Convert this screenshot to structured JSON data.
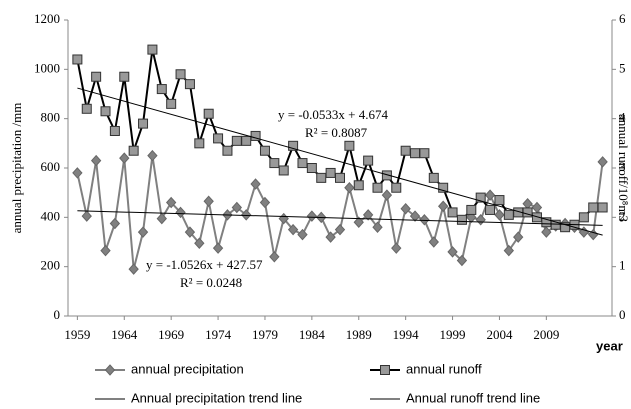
{
  "chart_data": {
    "type": "line",
    "y_label": "annual precipitation /mm",
    "y2_label": "annual runoff/10⁸m3",
    "x_label": "year",
    "xlim": [
      1958,
      2016
    ],
    "xticks": [
      1959,
      1964,
      1969,
      1974,
      1979,
      1984,
      1989,
      1994,
      1999,
      2004,
      2009
    ],
    "ylim": [
      0,
      1200
    ],
    "yticks": [
      0,
      200,
      400,
      600,
      800,
      1000,
      1200
    ],
    "y2lim": [
      0,
      6
    ],
    "y2ticks": [
      0,
      1,
      2,
      3,
      4,
      5,
      6
    ],
    "x": [
      1959,
      1960,
      1961,
      1962,
      1963,
      1964,
      1965,
      1966,
      1967,
      1968,
      1969,
      1970,
      1971,
      1972,
      1973,
      1974,
      1975,
      1976,
      1977,
      1978,
      1979,
      1980,
      1981,
      1982,
      1983,
      1984,
      1985,
      1986,
      1987,
      1988,
      1989,
      1990,
      1991,
      1992,
      1993,
      1994,
      1995,
      1996,
      1997,
      1998,
      1999,
      2000,
      2001,
      2002,
      2003,
      2004,
      2005,
      2006,
      2007,
      2008,
      2009,
      2010,
      2011,
      2012,
      2013,
      2014,
      2015
    ],
    "series": [
      {
        "name": "annual precipitation",
        "color": "#808080",
        "marker": "diamond",
        "values": [
          580,
          405,
          630,
          265,
          375,
          640,
          190,
          340,
          650,
          395,
          460,
          420,
          340,
          295,
          465,
          275,
          410,
          440,
          410,
          535,
          460,
          240,
          395,
          350,
          330,
          405,
          400,
          320,
          350,
          520,
          380,
          410,
          360,
          490,
          275,
          435,
          405,
          390,
          300,
          445,
          260,
          225,
          400,
          390,
          490,
          410,
          265,
          320,
          455,
          440,
          340,
          365,
          375,
          360,
          340,
          330,
          625
        ]
      },
      {
        "name": "annual runoff",
        "color": "#000000",
        "marker": "square",
        "axis": "y2",
        "values": [
          5.2,
          4.2,
          4.85,
          4.15,
          3.75,
          4.85,
          3.35,
          3.9,
          5.4,
          4.6,
          4.3,
          4.9,
          4.7,
          3.5,
          4.1,
          3.6,
          3.35,
          3.55,
          3.55,
          3.65,
          3.35,
          3.1,
          2.95,
          3.45,
          3.1,
          3.0,
          2.8,
          2.9,
          2.8,
          3.45,
          2.65,
          3.15,
          2.6,
          2.85,
          2.6,
          3.35,
          3.3,
          3.3,
          2.8,
          2.6,
          2.1,
          1.95,
          2.15,
          2.4,
          2.15,
          2.35,
          2.05,
          2.1,
          2.1,
          2.0,
          1.9,
          1.85,
          1.8,
          1.85,
          2.0,
          2.2,
          2.2
        ]
      }
    ],
    "trend_lines": [
      {
        "name": "Annual precipitation trend line",
        "x": [
          1959,
          2015
        ],
        "values": [
          426.5,
          367.6
        ]
      },
      {
        "name": "Annual runoff trend line",
        "axis": "y2",
        "x": [
          1959,
          2015
        ],
        "values": [
          4.62,
          1.64
        ]
      }
    ],
    "annotations": [
      "y = -0.0533x + 4.674",
      "R² = 0.8087",
      "y = -1.0526x + 427.57",
      "R² = 0.0248"
    ]
  }
}
